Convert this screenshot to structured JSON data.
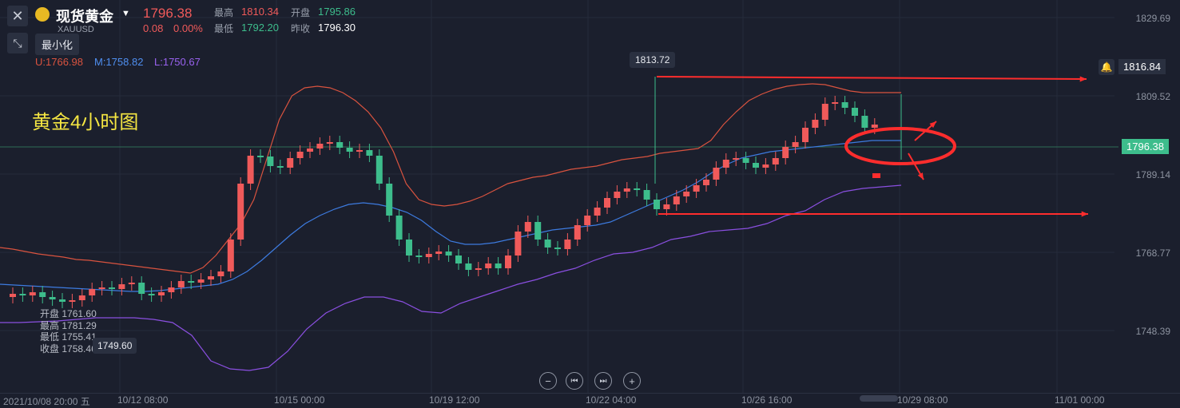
{
  "header": {
    "close_icon": "close-icon",
    "instrument_name": "现货黄金",
    "symbol": "XAUUSD",
    "current_price": "1796.38",
    "change": "0.08",
    "change_pct": "0.00%",
    "high_label": "最高",
    "high_value": "1810.34",
    "open_label": "开盘",
    "open_value": "1795.86",
    "low_label": "最低",
    "low_value": "1792.20",
    "prev_close_label": "昨收",
    "prev_close_value": "1796.30",
    "minimize_label": "最小化"
  },
  "bands": {
    "upper": "U:1766.98",
    "middle": "M:1758.82",
    "lower": "L:1750.67"
  },
  "chart_title": "黄金4小时图",
  "tooltip": {
    "open_label": "开盘",
    "open_value": "1761.60",
    "high_label": "最高",
    "high_value": "1781.29",
    "low_label": "最低",
    "low_value": "1755.41",
    "close_label": "收盘",
    "close_value": "1758.46",
    "extreme_low": "1749.60"
  },
  "annotations": {
    "peak_label": "1813.72"
  },
  "price_axis": {
    "labels": [
      "1829.69",
      "1809.52",
      "1789.14",
      "1768.77",
      "1748.39"
    ],
    "alert_price": "1816.84",
    "current_price": "1796.38"
  },
  "time_axis": {
    "labels": [
      "2021/10/08 20:00 五",
      "10/12 08:00",
      "10/15 00:00",
      "10/19 12:00",
      "10/22 04:00",
      "10/26 16:00",
      "10/29 08:00",
      "11/01 00:00"
    ]
  },
  "controls": {
    "zoom_out": "−",
    "prev": "⏮",
    "next": "⏭",
    "zoom_in": "+"
  },
  "colors": {
    "up": "#f05a5a",
    "down": "#3dbd8c",
    "background": "#1b1f2d",
    "upper_band": "#d9533f",
    "middle_band": "#3d7be0",
    "lower_band": "#8a4fe0",
    "title": "#f5e642",
    "annotation": "#ff2d2d"
  }
}
